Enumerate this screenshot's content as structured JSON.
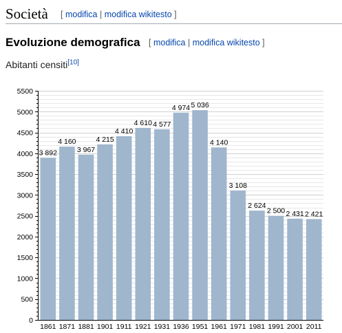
{
  "section": {
    "title": "Società",
    "edit_open": "[",
    "edit_label": "modifica",
    "edit_sep": "|",
    "edit_wiki_label": "modifica wikitesto",
    "edit_close": "]"
  },
  "subsection": {
    "title": "Evoluzione demografica",
    "edit_open": "[",
    "edit_label": "modifica",
    "edit_sep": "|",
    "edit_wiki_label": "modifica wikitesto",
    "edit_close": "]"
  },
  "caption": {
    "text": "Abitanti censiti",
    "ref": "[10]"
  },
  "chart_data": {
    "type": "bar",
    "categories": [
      "1861",
      "1871",
      "1881",
      "1901",
      "1911",
      "1921",
      "1931",
      "1936",
      "1951",
      "1961",
      "1971",
      "1981",
      "1991",
      "2001",
      "2011"
    ],
    "values": [
      3892,
      4160,
      3967,
      4215,
      4410,
      4610,
      4577,
      4974,
      5036,
      4140,
      3108,
      2624,
      2500,
      2431,
      2421
    ],
    "value_labels": [
      "3 892",
      "4 160",
      "3 967",
      "4 215",
      "4 410",
      "4 610",
      "4 577",
      "4 974",
      "5 036",
      "4 140",
      "3 108",
      "2 624",
      "2 500",
      "2 431",
      "2 421"
    ],
    "ylim": [
      0,
      5500
    ],
    "yticks": [
      0,
      500,
      1000,
      1500,
      2000,
      2500,
      3000,
      3500,
      4000,
      4500,
      5000,
      5500
    ],
    "grid": true,
    "bar_color": "#9fb6cd",
    "grid_color": "#d0d0d0"
  }
}
